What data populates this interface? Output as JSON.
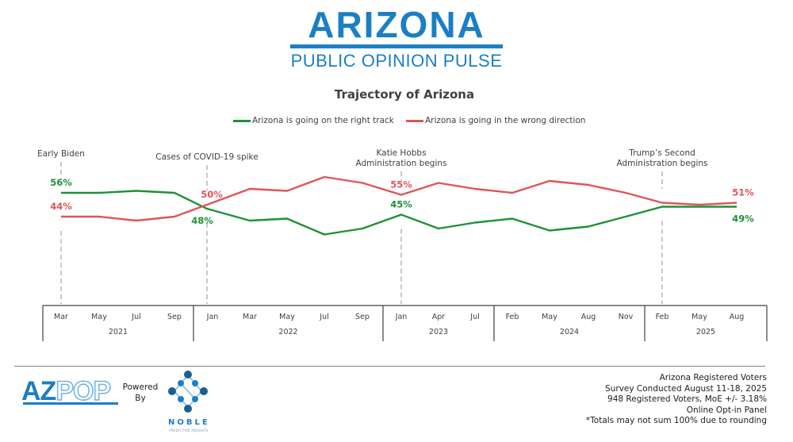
{
  "header": {
    "logo_title": "Arizona",
    "logo_subtitle": "PUBLIC OPINION PULSE"
  },
  "colors": {
    "brand_blue": "#1b7fc4",
    "right_track": "#1f9138",
    "wrong_direction": "#e05558",
    "annotation_line": "#c8c8c8",
    "axis": "#404040",
    "text": "#404040"
  },
  "chart_data": {
    "type": "line",
    "title": "Trajectory of Arizona",
    "xlabel": "",
    "ylabel": "",
    "ylim": [
      30,
      70
    ],
    "grid": false,
    "legend_position": "top-center",
    "x": [
      "Mar 2021",
      "May 2021",
      "Jul 2021",
      "Sep 2021",
      "Jan 2022",
      "Mar 2022",
      "May 2022",
      "Jul 2022",
      "Sep 2022",
      "Jan 2023",
      "Apr 2023",
      "Jul 2023",
      "Feb 2024",
      "May 2024",
      "Aug 2024",
      "Nov 2024",
      "Feb 2025",
      "May 2025",
      "Aug 2025"
    ],
    "series": [
      {
        "name": "Arizona is going on the right track",
        "key": "right_track",
        "values": [
          56,
          56,
          57,
          56,
          48,
          42,
          43,
          35,
          38,
          45,
          38,
          41,
          43,
          37,
          39,
          44,
          49,
          49,
          49
        ]
      },
      {
        "name": "Arizona is going in the wrong direction",
        "key": "wrong_direction",
        "values": [
          44,
          44,
          42,
          44,
          50,
          58,
          57,
          64,
          61,
          55,
          61,
          58,
          56,
          62,
          60,
          56,
          51,
          50,
          51
        ]
      }
    ],
    "data_labels": [
      {
        "series": "right_track",
        "index": 0,
        "text": "56%",
        "pos": "above"
      },
      {
        "series": "wrong_direction",
        "index": 0,
        "text": "44%",
        "pos": "above"
      },
      {
        "series": "wrong_direction",
        "index": 4,
        "text": "50%",
        "pos": "above"
      },
      {
        "series": "right_track",
        "index": 4,
        "text": "48%",
        "pos": "below"
      },
      {
        "series": "wrong_direction",
        "index": 9,
        "text": "55%",
        "pos": "above"
      },
      {
        "series": "right_track",
        "index": 9,
        "text": "45%",
        "pos": "above"
      },
      {
        "series": "wrong_direction",
        "index": 18,
        "text": "51%",
        "pos": "above"
      },
      {
        "series": "right_track",
        "index": 18,
        "text": "49%",
        "pos": "below"
      }
    ],
    "annotations": [
      {
        "index": 0,
        "lines": [
          "Early Biden"
        ]
      },
      {
        "index": 4,
        "lines": [
          "Cases of COVID-19 spike"
        ]
      },
      {
        "index": 9,
        "lines": [
          "Katie Hobbs",
          "Administration begins"
        ]
      },
      {
        "index": 16,
        "lines": [
          "Trump’s Second",
          "Administration begins"
        ]
      }
    ],
    "month_ticks": [
      "Mar",
      "May",
      "Jul",
      "Sep",
      "Jan",
      "Mar",
      "May",
      "Jul",
      "Sep",
      "Jan",
      "Apr",
      "Jul",
      "Feb",
      "May",
      "Aug",
      "Nov",
      "Feb",
      "May",
      "Aug"
    ],
    "year_groups": [
      {
        "label": "2021",
        "start": 0,
        "end": 3
      },
      {
        "label": "2022",
        "start": 4,
        "end": 8
      },
      {
        "label": "2023",
        "start": 9,
        "end": 11
      },
      {
        "label": "2024",
        "start": 12,
        "end": 15
      },
      {
        "label": "2025",
        "start": 16,
        "end": 18
      }
    ]
  },
  "footer": {
    "brand_az": "AZ",
    "brand_pop": "POP",
    "powered_by": [
      "Powered",
      "By"
    ],
    "noble_name": "NOBLE",
    "noble_tagline": "PREDICTIVE INSIGHTS",
    "notes": [
      "Arizona Registered Voters",
      "Survey Conducted August 11-18, 2025",
      "948 Registered Voters, MoE +/- 3.18%",
      "Online Opt-in Panel",
      "*Totals may not sum 100% due to rounding"
    ]
  }
}
